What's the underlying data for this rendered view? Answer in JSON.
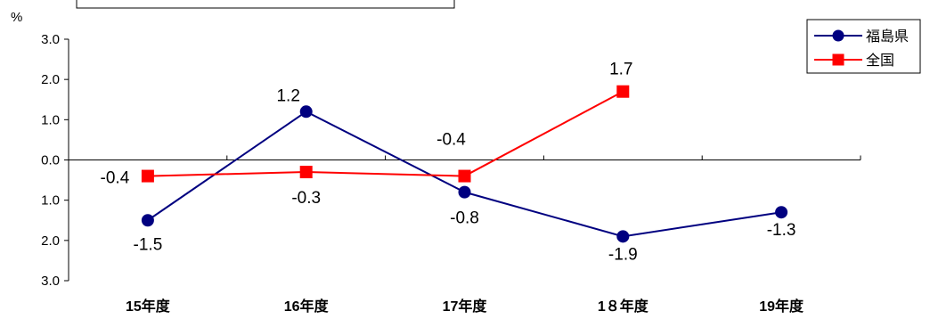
{
  "chart_data": {
    "type": "line",
    "ylabel": "%",
    "ylim": [
      -3.0,
      3.0
    ],
    "y_tick_labels": [
      "3.0",
      "2.0",
      "1.0",
      "0.0",
      "1.0",
      "2.0",
      "3.0"
    ],
    "y_ticks": [
      3,
      2,
      1,
      0,
      -1,
      -2,
      -3
    ],
    "categories": [
      "15年度",
      "16年度",
      "17年度",
      "1８年度",
      "19年度"
    ],
    "legend_position": "top-right",
    "series": [
      {
        "name": "福島県",
        "color": "#000080",
        "marker": "circle",
        "values": [
          -1.5,
          1.2,
          -0.8,
          -1.9,
          -1.3
        ],
        "labels": [
          "-1.5",
          "1.2",
          "-0.8",
          "-1.9",
          "-1.3"
        ]
      },
      {
        "name": "全国",
        "color": "#ff0000",
        "marker": "square",
        "values": [
          -0.4,
          -0.3,
          -0.4,
          1.7,
          null
        ],
        "labels": [
          "-0.4",
          "-0.3",
          "-0.4",
          "1.7",
          null
        ]
      }
    ]
  }
}
